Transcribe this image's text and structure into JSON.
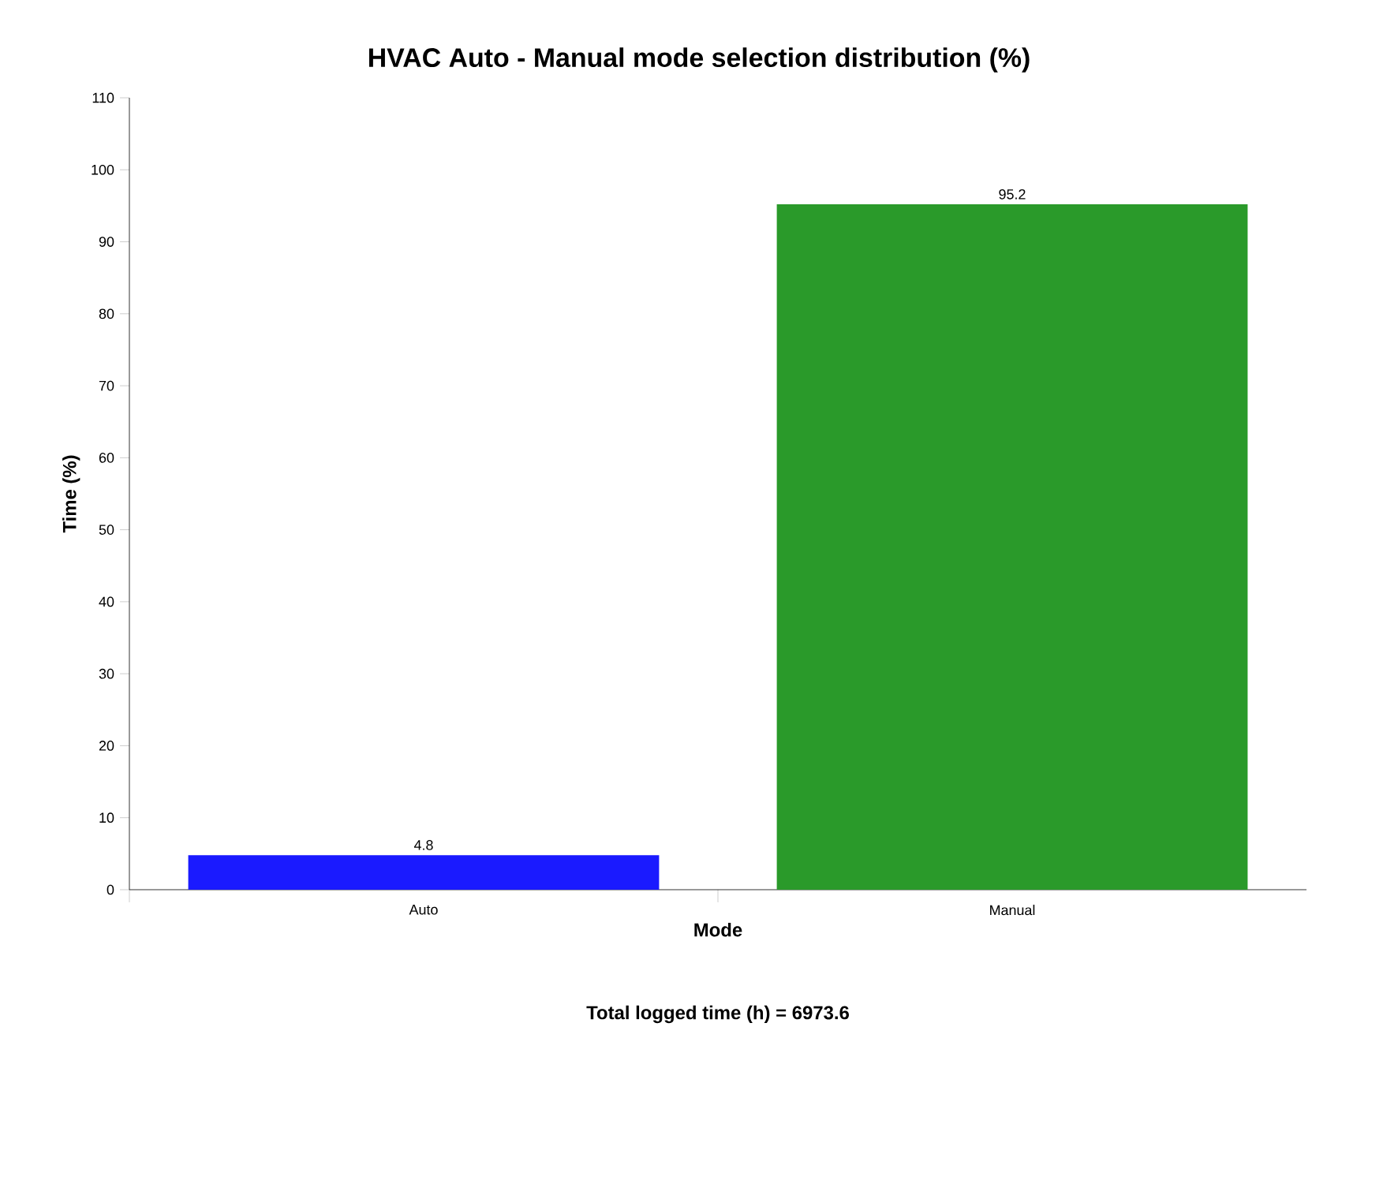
{
  "chart_data": {
    "type": "bar",
    "title": "HVAC Auto - Manual mode selection distribution (%)",
    "xlabel": "Mode",
    "ylabel": "Time (%)",
    "categories": [
      "Auto",
      "Manual"
    ],
    "values": [
      4.8,
      95.2
    ],
    "colors": [
      "#1a1aff",
      "#2a9a2a"
    ],
    "ylim": [
      0,
      110
    ],
    "yticks": [
      0,
      10,
      20,
      30,
      40,
      50,
      60,
      70,
      80,
      90,
      100,
      110
    ],
    "data_labels": true,
    "grid": false,
    "annotations": [
      "Total logged time (h) = 6973.6"
    ]
  }
}
